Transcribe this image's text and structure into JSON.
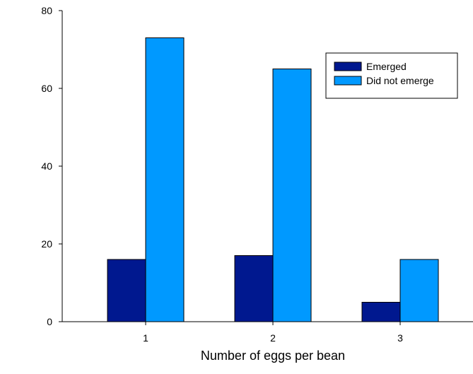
{
  "chart_data": {
    "type": "bar",
    "title": "",
    "xlabel": "Number of eggs per bean",
    "ylabel": "",
    "ylim": [
      0,
      80
    ],
    "yticks": [
      0,
      20,
      40,
      60,
      80
    ],
    "categories": [
      "1",
      "2",
      "3"
    ],
    "series": [
      {
        "name": "Emerged",
        "color": "#00188f",
        "values": [
          16,
          17,
          5
        ]
      },
      {
        "name": "Did not emerge",
        "color": "#0099ff",
        "values": [
          73,
          65,
          16
        ]
      }
    ],
    "grid": false,
    "legend_position": "top-right"
  }
}
